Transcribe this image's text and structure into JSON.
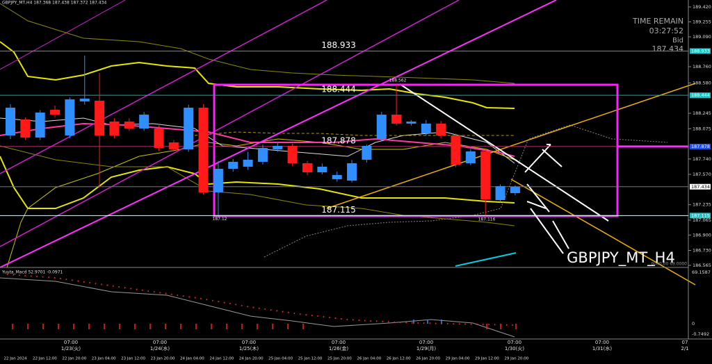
{
  "header": "GBPJPY_MT,H4  187.368 187.438 187.372 187.434",
  "time_remain": {
    "title": "TIME REMAIN",
    "time": "03:27:52",
    "bid_label": "Bid",
    "bid": "187.434"
  },
  "watermark": "GBPJPY_MT_H4",
  "pane_note": "0000.00 69.0000",
  "indicator": {
    "title": "Yuuta_Macd 52.9701  -0.0971",
    "axis_labels": [
      "69.1587",
      "0",
      "-0.7492"
    ]
  },
  "time_axis": {
    "major": [
      {
        "time": "07:00",
        "date": "1/23(火)"
      },
      {
        "time": "07:00",
        "date": "1/24(水)"
      },
      {
        "time": "07:00",
        "date": "1/25(木)"
      },
      {
        "time": "07:00",
        "date": "1/26(金)"
      },
      {
        "time": "07:00",
        "date": "1/29(月)"
      },
      {
        "time": "07:00",
        "date": "1/30(火)"
      },
      {
        "time": "07:00",
        "date": "1/31(水)"
      },
      {
        "time": "07",
        "date": "2/1"
      }
    ],
    "minor": [
      "22 Jan 2024",
      "22 Jan 12:00",
      "22 Jan 20:00",
      "23 Jan 04:00",
      "23 Jan 12:00",
      "23 Jan 20:00",
      "24 Jan 04:00",
      "24 Jan 12:00",
      "24 Jan 20:00",
      "25 Jan 04:00",
      "25 Jan 12:00",
      "25 Jan 20:00",
      "26 Jan 04:00",
      "26 Jan 12:00",
      "26 Jan 20:00",
      "29 Jan 04:00",
      "29 Jan 12:00",
      "29 Jan 20:00"
    ]
  },
  "chart_data": {
    "type": "candlestick",
    "colors": {
      "up": "#2f8fff",
      "down": "#ff1a1a"
    },
    "ylim": [
      186.565,
      189.42
    ],
    "yticks": [
      {
        "value": 189.42,
        "label": "189.420"
      },
      189.255,
      {
        "value": 189.09,
        "label": "189.090"
      },
      {
        "value": 188.76,
        "label": "188.760"
      },
      {
        "value": 188.58,
        "label": "188.580"
      },
      188.245,
      188.075,
      {
        "value": 187.74,
        "label": "187.740"
      },
      {
        "value": 187.57,
        "label": "187.570"
      },
      187.235,
      187.065,
      {
        "value": 186.9,
        "label": "186.900"
      },
      {
        "value": 186.73,
        "label": "186.730"
      },
      186.565
    ],
    "levels": [
      188.933,
      188.444,
      187.878,
      187.115
    ],
    "level_colors": [
      "#2aa6a6",
      "#2aa6a6",
      "#ff2bff",
      "#dfffff"
    ],
    "bid": 187.434,
    "open": [
      188.0,
      188.177,
      187.977,
      188.284,
      188.0,
      188.376,
      188.384,
      188.154,
      188.154,
      188.077,
      188.077,
      187.923,
      187.847,
      188.307,
      187.371,
      187.632,
      187.655,
      187.709,
      187.847,
      187.885,
      187.693,
      187.593,
      187.517,
      187.501,
      187.732,
      187.962,
      188.23,
      188.131,
      188.023,
      188.131,
      188.0,
      187.693,
      187.824,
      187.286,
      187.363
    ],
    "high": [
      188.346,
      188.2,
      188.28,
      188.33,
      188.42,
      188.883,
      188.691,
      188.19,
      188.19,
      188.26,
      188.11,
      187.95,
      188.34,
      188.346,
      187.72,
      187.74,
      187.82,
      187.9,
      187.92,
      187.91,
      187.72,
      187.69,
      187.6,
      187.73,
      187.9,
      188.26,
      188.562,
      188.17,
      188.17,
      188.16,
      188.02,
      187.85,
      187.85,
      187.46,
      187.45
    ],
    "low": [
      187.962,
      187.95,
      187.95,
      188.2,
      187.97,
      188.34,
      187.425,
      187.97,
      188.05,
      188.05,
      187.83,
      187.82,
      187.82,
      187.348,
      187.12,
      187.6,
      187.62,
      187.68,
      187.82,
      187.66,
      187.56,
      187.57,
      187.49,
      187.48,
      187.7,
      187.94,
      188.11,
      188.11,
      188.0,
      187.97,
      187.65,
      187.67,
      187.116,
      187.26,
      187.34
    ],
    "close": [
      188.307,
      187.977,
      188.253,
      188.23,
      188.399,
      188.407,
      188.0,
      188.0,
      188.077,
      188.23,
      187.862,
      187.847,
      188.307,
      187.371,
      187.632,
      187.709,
      187.732,
      187.862,
      187.885,
      187.693,
      187.593,
      187.655,
      187.563,
      187.693,
      187.885,
      188.23,
      188.131,
      188.154,
      188.131,
      188.0,
      187.678,
      187.824,
      187.294,
      187.44,
      187.434
    ]
  }
}
